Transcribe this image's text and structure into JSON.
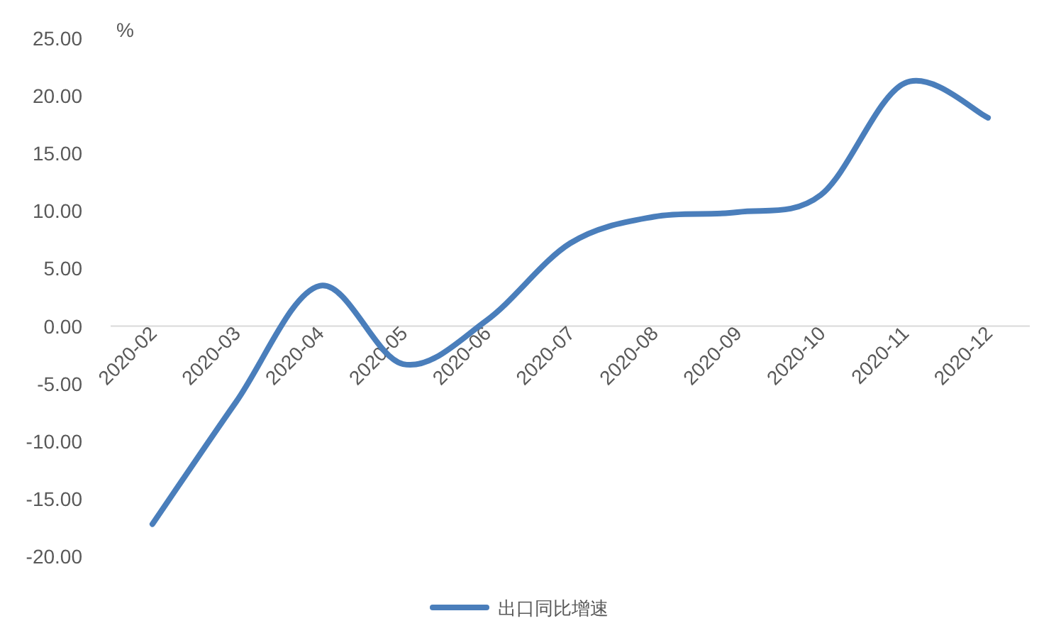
{
  "chart_data": {
    "type": "line",
    "ylabel": "%",
    "categories": [
      "2020-02",
      "2020-03",
      "2020-04",
      "2020-05",
      "2020-06",
      "2020-07",
      "2020-08",
      "2020-09",
      "2020-10",
      "2020-11",
      "2020-12"
    ],
    "series": [
      {
        "name": "出口同比增速",
        "color": "#4a7ebb",
        "values": [
          -17.2,
          -6.6,
          3.5,
          -3.3,
          0.5,
          7.2,
          9.5,
          9.9,
          11.4,
          21.1,
          18.1
        ]
      }
    ],
    "ylim": [
      -20,
      25
    ],
    "yticks": [
      {
        "value": -20,
        "label": "-20.00"
      },
      {
        "value": -15,
        "label": "-15.00"
      },
      {
        "value": -10,
        "label": "-10.00"
      },
      {
        "value": -5,
        "label": "-5.00"
      },
      {
        "value": 0,
        "label": "0.00"
      },
      {
        "value": 5,
        "label": "5.00"
      },
      {
        "value": 10,
        "label": "10.00"
      },
      {
        "value": 15,
        "label": "15.00"
      },
      {
        "value": 20,
        "label": "20.00"
      },
      {
        "value": 25,
        "label": "25.00"
      }
    ],
    "grid": false,
    "legend": "bottom",
    "marker": "none",
    "line_style": "solid"
  }
}
